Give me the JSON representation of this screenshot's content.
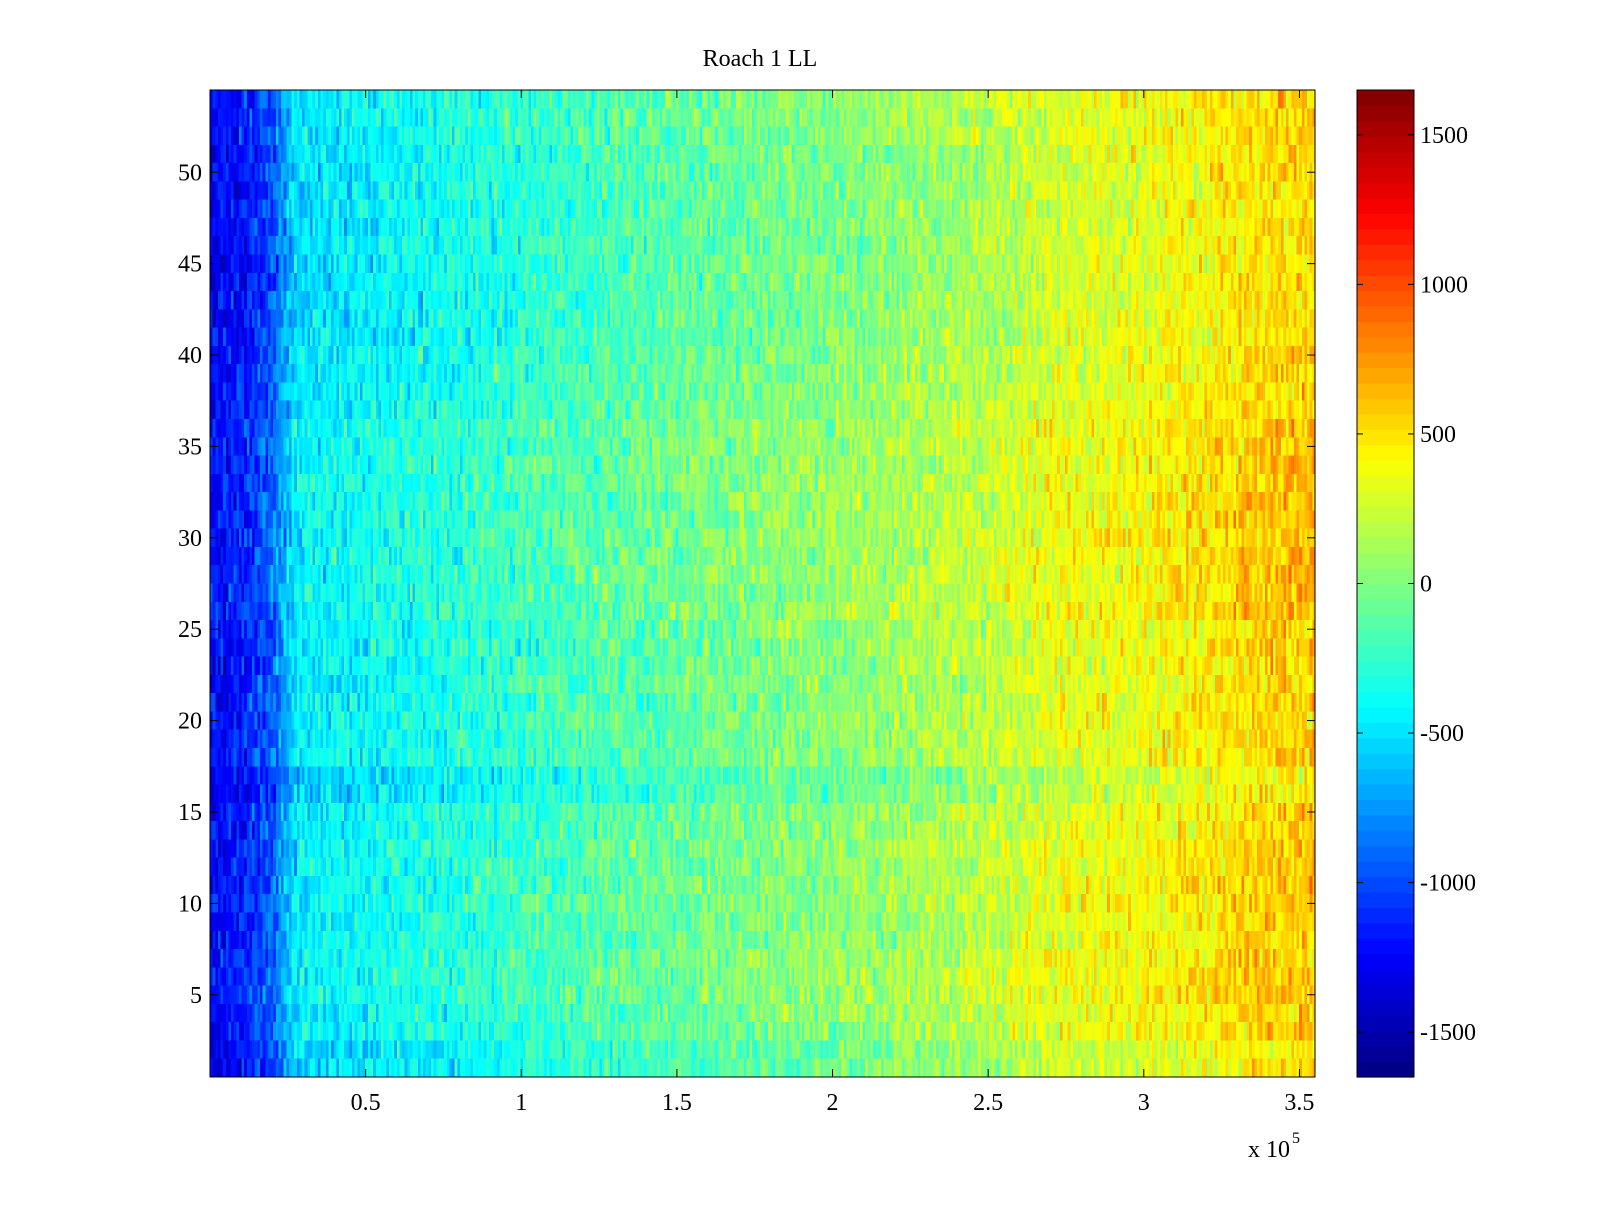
{
  "chart_data": {
    "type": "heatmap",
    "title": "Roach 1 LL",
    "xlabel": "",
    "ylabel": "",
    "x_multiplier_label": {
      "base": "x 10",
      "exponent": "5"
    },
    "xlim": [
      0,
      3.55
    ],
    "ylim": [
      0.5,
      54.5
    ],
    "x_ticks": [
      0.5,
      1,
      1.5,
      2,
      2.5,
      3,
      3.5
    ],
    "x_tick_labels": [
      "0.5",
      "1",
      "1.5",
      "2",
      "2.5",
      "3",
      "3.5"
    ],
    "y_ticks": [
      5,
      10,
      15,
      20,
      25,
      30,
      35,
      40,
      45,
      50
    ],
    "y_tick_labels": [
      "5",
      "10",
      "15",
      "20",
      "25",
      "30",
      "35",
      "40",
      "45",
      "50"
    ],
    "rows": 54,
    "colormap": "jet",
    "clim": [
      -1650,
      1650
    ],
    "colorbar": {
      "ticks": [
        -1500,
        -1000,
        -500,
        0,
        500,
        1000,
        1500
      ],
      "tick_labels": [
        "-1500",
        "-1000",
        "-500",
        "0",
        "500",
        "1000",
        "1500"
      ]
    },
    "column_profile": {
      "x": [
        0,
        0.1,
        0.2,
        0.24,
        0.28,
        0.4,
        0.6,
        0.8,
        1.0,
        1.2,
        1.5,
        1.8,
        2.0,
        2.2,
        2.5,
        2.7,
        3.0,
        3.2,
        3.4,
        3.55
      ],
      "mean_value": [
        -1250,
        -1150,
        -950,
        -700,
        -480,
        -430,
        -370,
        -310,
        -230,
        -170,
        -90,
        -10,
        30,
        90,
        200,
        310,
        380,
        450,
        550,
        580
      ]
    },
    "row_offsets": [
      {
        "rows": [
          1,
          2
        ],
        "delta": -90
      },
      {
        "rows": [
          5,
          6,
          7
        ],
        "delta": 40
      },
      {
        "rows": [
          10,
          11,
          12,
          13
        ],
        "delta": 30
      },
      {
        "rows": [
          16,
          17
        ],
        "delta": -120
      },
      {
        "rows": [
          26,
          27,
          28,
          29,
          30,
          31,
          32,
          33,
          34,
          35,
          36
        ],
        "delta": 50
      },
      {
        "rows": [
          41,
          42,
          43,
          44,
          45,
          46,
          47,
          48,
          49,
          50,
          51
        ],
        "delta": -50
      }
    ],
    "noise_amplitude": 260
  },
  "colors": {
    "axis": "#000000",
    "background": "#ffffff"
  }
}
